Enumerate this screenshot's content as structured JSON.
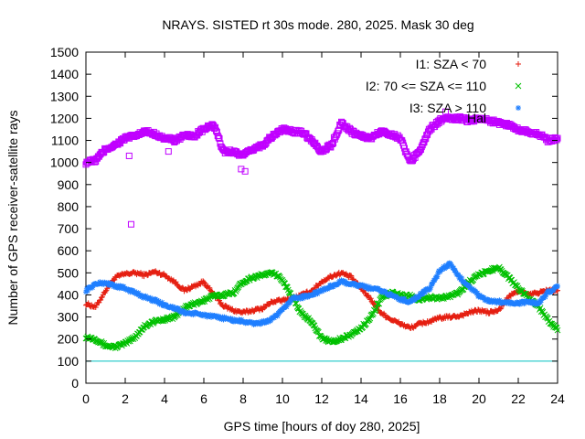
{
  "chart_data": {
    "type": "scatter",
    "title": "NRAYS. SISTED rt 30s mode. 280, 2025. Mask 30 deg",
    "xlabel": "GPS time [hours of doy 280, 2025]",
    "ylabel": "Number of GPS receiver-satellite rays",
    "xlim": [
      0,
      24
    ],
    "ylim": [
      0,
      1500
    ],
    "x_ticks": [
      0,
      2,
      4,
      6,
      8,
      10,
      12,
      14,
      16,
      18,
      20,
      22,
      24
    ],
    "y_ticks": [
      0,
      100,
      200,
      300,
      400,
      500,
      600,
      700,
      800,
      900,
      1000,
      1100,
      1200,
      1300,
      1400,
      1500
    ],
    "grid": false,
    "legend_position": "top-right",
    "reference_line": {
      "y": 100,
      "color": "#00c0c0"
    },
    "series": [
      {
        "name": "I1: SZA < 70",
        "marker": "+",
        "color": "#e51e10",
        "points": [
          [
            0,
            360
          ],
          [
            0.5,
            345
          ],
          [
            1,
            420
          ],
          [
            1.5,
            480
          ],
          [
            2,
            495
          ],
          [
            2.5,
            500
          ],
          [
            3,
            490
          ],
          [
            3.5,
            505
          ],
          [
            4,
            490
          ],
          [
            4.5,
            460
          ],
          [
            5,
            420
          ],
          [
            5.5,
            440
          ],
          [
            6,
            460
          ],
          [
            6.5,
            400
          ],
          [
            7,
            350
          ],
          [
            7.5,
            330
          ],
          [
            8,
            320
          ],
          [
            8.5,
            330
          ],
          [
            9,
            340
          ],
          [
            9.5,
            370
          ],
          [
            10,
            375
          ],
          [
            10.5,
            385
          ],
          [
            11,
            400
          ],
          [
            11.5,
            420
          ],
          [
            12,
            460
          ],
          [
            12.5,
            485
          ],
          [
            13,
            500
          ],
          [
            13.5,
            480
          ],
          [
            14,
            430
          ],
          [
            14.5,
            380
          ],
          [
            15,
            320
          ],
          [
            15.5,
            290
          ],
          [
            16,
            270
          ],
          [
            16.5,
            250
          ],
          [
            17,
            270
          ],
          [
            17.5,
            280
          ],
          [
            18,
            295
          ],
          [
            18.5,
            300
          ],
          [
            19,
            305
          ],
          [
            19.5,
            320
          ],
          [
            20,
            330
          ],
          [
            20.5,
            320
          ],
          [
            21,
            330
          ],
          [
            21.5,
            390
          ],
          [
            22,
            420
          ],
          [
            22.5,
            400
          ],
          [
            23,
            410
          ],
          [
            23.5,
            420
          ],
          [
            24,
            420
          ]
        ]
      },
      {
        "name": "I2: 70 <= SZA <= 110",
        "marker": "x",
        "color": "#00c000",
        "points": [
          [
            0,
            210
          ],
          [
            0.5,
            200
          ],
          [
            1,
            170
          ],
          [
            1.5,
            165
          ],
          [
            2,
            180
          ],
          [
            2.5,
            210
          ],
          [
            3,
            260
          ],
          [
            3.5,
            280
          ],
          [
            4,
            290
          ],
          [
            4.5,
            300
          ],
          [
            5,
            340
          ],
          [
            5.5,
            360
          ],
          [
            6,
            375
          ],
          [
            6.5,
            395
          ],
          [
            7,
            400
          ],
          [
            7.5,
            410
          ],
          [
            8,
            460
          ],
          [
            8.5,
            480
          ],
          [
            9,
            490
          ],
          [
            9.5,
            500
          ],
          [
            10,
            470
          ],
          [
            10.5,
            390
          ],
          [
            11,
            310
          ],
          [
            11.5,
            280
          ],
          [
            12,
            200
          ],
          [
            12.5,
            190
          ],
          [
            13,
            200
          ],
          [
            13.5,
            220
          ],
          [
            14,
            250
          ],
          [
            14.5,
            300
          ],
          [
            15,
            380
          ],
          [
            15.5,
            410
          ],
          [
            16,
            400
          ],
          [
            16.5,
            395
          ],
          [
            17,
            380
          ],
          [
            17.5,
            390
          ],
          [
            18,
            385
          ],
          [
            18.5,
            395
          ],
          [
            19,
            410
          ],
          [
            19.5,
            460
          ],
          [
            20,
            490
          ],
          [
            20.5,
            510
          ],
          [
            21,
            525
          ],
          [
            21.5,
            480
          ],
          [
            22,
            430
          ],
          [
            22.5,
            390
          ],
          [
            23,
            350
          ],
          [
            23.5,
            290
          ],
          [
            24,
            240
          ]
        ]
      },
      {
        "name": "I3: SZA > 110",
        "marker": "*",
        "color": "#1f7fff",
        "points": [
          [
            0,
            420
          ],
          [
            0.5,
            450
          ],
          [
            1,
            455
          ],
          [
            1.5,
            440
          ],
          [
            2,
            430
          ],
          [
            2.5,
            410
          ],
          [
            3,
            390
          ],
          [
            3.5,
            375
          ],
          [
            4,
            355
          ],
          [
            4.5,
            340
          ],
          [
            5,
            320
          ],
          [
            5.5,
            315
          ],
          [
            6,
            310
          ],
          [
            6.5,
            300
          ],
          [
            7,
            295
          ],
          [
            7.5,
            285
          ],
          [
            8,
            280
          ],
          [
            8.5,
            270
          ],
          [
            9,
            275
          ],
          [
            9.5,
            290
          ],
          [
            10,
            330
          ],
          [
            10.5,
            385
          ],
          [
            11,
            390
          ],
          [
            11.5,
            400
          ],
          [
            12,
            420
          ],
          [
            12.5,
            440
          ],
          [
            13,
            460
          ],
          [
            13.5,
            450
          ],
          [
            14,
            440
          ],
          [
            14.5,
            430
          ],
          [
            15,
            420
          ],
          [
            15.5,
            400
          ],
          [
            16,
            380
          ],
          [
            16.5,
            370
          ],
          [
            17,
            400
          ],
          [
            17.5,
            430
          ],
          [
            18,
            510
          ],
          [
            18.5,
            540
          ],
          [
            19,
            480
          ],
          [
            19.5,
            440
          ],
          [
            20,
            395
          ],
          [
            20.5,
            370
          ],
          [
            21,
            370
          ],
          [
            21.5,
            365
          ],
          [
            22,
            360
          ],
          [
            22.5,
            370
          ],
          [
            23,
            360
          ],
          [
            23.5,
            410
          ],
          [
            24,
            440
          ]
        ]
      },
      {
        "name": "Hal",
        "marker": "square",
        "color": "#c000ff",
        "points": [
          [
            0,
            1000
          ],
          [
            0.5,
            1010
          ],
          [
            1,
            1060
          ],
          [
            1.5,
            1080
          ],
          [
            2,
            1110
          ],
          [
            2.5,
            1120
          ],
          [
            3,
            1140
          ],
          [
            3.5,
            1130
          ],
          [
            4,
            1110
          ],
          [
            4.5,
            1100
          ],
          [
            5,
            1120
          ],
          [
            5.5,
            1120
          ],
          [
            6,
            1150
          ],
          [
            6.5,
            1170
          ],
          [
            7,
            1050
          ],
          [
            7.5,
            1050
          ],
          [
            8,
            1030
          ],
          [
            8.5,
            1060
          ],
          [
            9,
            1080
          ],
          [
            9.5,
            1120
          ],
          [
            10,
            1150
          ],
          [
            10.5,
            1140
          ],
          [
            11,
            1140
          ],
          [
            11.5,
            1100
          ],
          [
            12,
            1050
          ],
          [
            12.5,
            1080
          ],
          [
            13,
            1180
          ],
          [
            13.5,
            1140
          ],
          [
            14,
            1120
          ],
          [
            14.5,
            1110
          ],
          [
            15,
            1140
          ],
          [
            15.5,
            1130
          ],
          [
            16,
            1110
          ],
          [
            16.5,
            1000
          ],
          [
            17,
            1060
          ],
          [
            17.5,
            1150
          ],
          [
            18,
            1190
          ],
          [
            18.5,
            1200
          ],
          [
            19,
            1200
          ],
          [
            19.5,
            1190
          ],
          [
            20,
            1200
          ],
          [
            20.5,
            1190
          ],
          [
            21,
            1180
          ],
          [
            21.5,
            1170
          ],
          [
            22,
            1150
          ],
          [
            22.5,
            1140
          ],
          [
            23,
            1130
          ],
          [
            23.5,
            1100
          ],
          [
            24,
            1110
          ]
        ],
        "outliers": [
          [
            2.3,
            720
          ],
          [
            2.2,
            1030
          ],
          [
            4.2,
            1050
          ],
          [
            8.1,
            960
          ],
          [
            7.9,
            970
          ],
          [
            18.3,
            1230
          ]
        ]
      }
    ]
  }
}
